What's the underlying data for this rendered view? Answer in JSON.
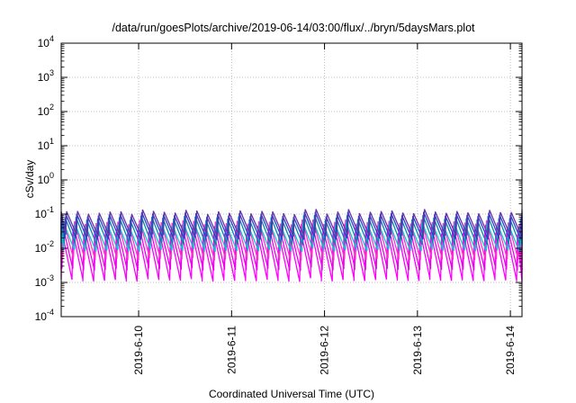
{
  "chart_data": {
    "type": "line",
    "title": "/data/run/goesPlots/archive/2019-06-14/03:00/flux/../bryn/5daysMars.plot",
    "xlabel": "Coordinated Universal Time (UTC)",
    "ylabel": "cSv/day",
    "yscale": "log",
    "ylim": [
      0.0001,
      10000
    ],
    "xlim": [
      "2019-06-09 04:00",
      "2019-06-14 03:00"
    ],
    "x_ticks": [
      "2019-6-10",
      "2019-6-11",
      "2019-6-12",
      "2019-6-13",
      "2019-6-14"
    ],
    "y_ticks": [
      {
        "base": "10",
        "exp": "-4",
        "value": 0.0001
      },
      {
        "base": "10",
        "exp": "-3",
        "value": 0.001
      },
      {
        "base": "10",
        "exp": "-2",
        "value": 0.01
      },
      {
        "base": "10",
        "exp": "-1",
        "value": 0.1
      },
      {
        "base": "10",
        "exp": "0",
        "value": 1
      },
      {
        "base": "10",
        "exp": "1",
        "value": 10
      },
      {
        "base": "10",
        "exp": "2",
        "value": 100
      },
      {
        "base": "10",
        "exp": "3",
        "value": 1000
      },
      {
        "base": "10",
        "exp": "4",
        "value": 10000
      }
    ],
    "grid": true,
    "sawtooth_period_hours": 2.8,
    "series": [
      {
        "color": "#ff00ff",
        "peak": 0.03,
        "trough": 0.0012
      },
      {
        "color": "#ee00ee",
        "peak": 0.045,
        "trough": 0.0025
      },
      {
        "color": "#ff33cc",
        "peak": 0.06,
        "trough": 0.005
      },
      {
        "color": "#00cccc",
        "peak": 0.05,
        "trough": 0.009
      },
      {
        "color": "#0088aa",
        "peak": 0.08,
        "trough": 0.014
      },
      {
        "color": "#2244cc",
        "peak": 0.1,
        "trough": 0.02
      },
      {
        "color": "#6633aa",
        "peak": 0.12,
        "trough": 0.025
      }
    ]
  }
}
